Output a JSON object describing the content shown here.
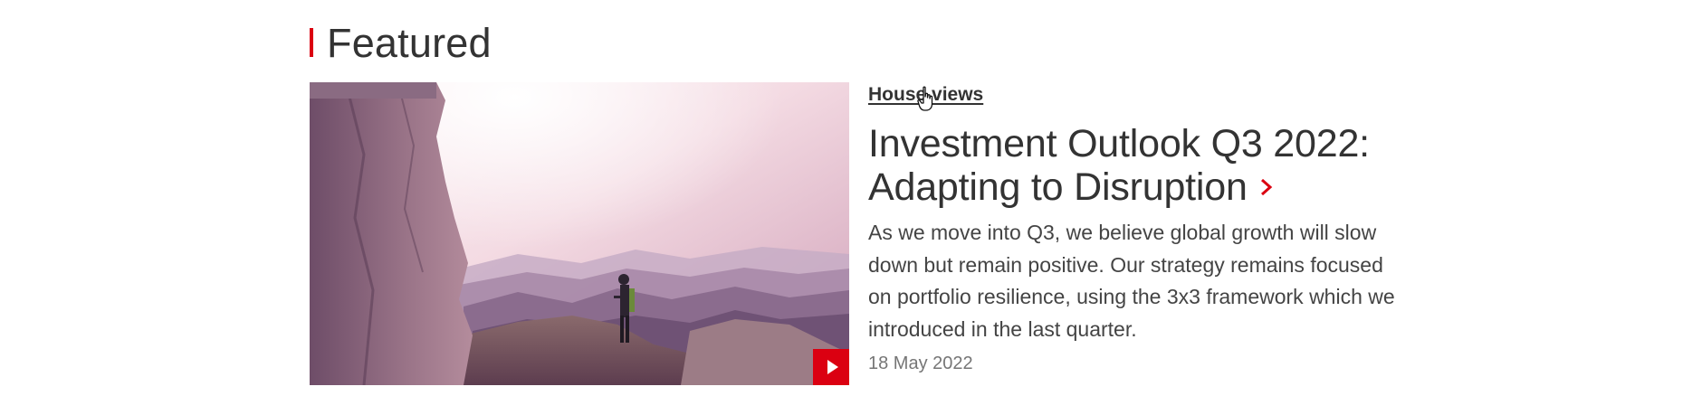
{
  "section": {
    "title": "Featured",
    "accent_color": "#db0011"
  },
  "article": {
    "category": "House views",
    "title": "Investment Outlook Q3 2022: Adapting to Disruption",
    "summary": "As we move into Q3, we believe global growth will slow down but remain positive. Our strategy remains focused on portfolio resilience, using the 3x3 framework which we introduced in the last quarter.",
    "date": "18 May 2022",
    "image_alt": "Hiker standing on a mountain ridge at sunrise",
    "media_icon": "play-icon",
    "link_icon": "chevron-right-icon"
  },
  "colors": {
    "brand_red": "#db0011",
    "text": "#333333",
    "muted": "#767676"
  }
}
